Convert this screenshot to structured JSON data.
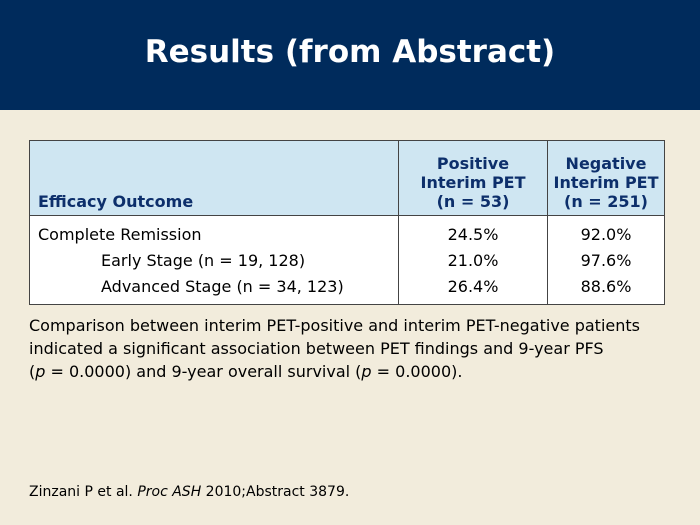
{
  "title": "Results (from Abstract)",
  "table": {
    "headers": {
      "outcome": "Efficacy Outcome",
      "positive": [
        "Positive",
        "Interim PET",
        "(n = 53)"
      ],
      "negative": [
        "Negative",
        "Interim PET",
        "(n = 251)"
      ]
    },
    "rows": [
      {
        "label": "Complete Remission",
        "positive": "24.5%",
        "negative": "92.0%"
      },
      {
        "label": "Early Stage (n = 19, 128)",
        "positive": "21.0%",
        "negative": "97.6%"
      },
      {
        "label": "Advanced Stage (n = 34, 123)",
        "positive": "26.4%",
        "negative": "88.6%"
      }
    ]
  },
  "body": {
    "line1": "Comparison between interim PET-positive and interim PET-negative patients",
    "line2": "indicated a significant association between PET findings and 9-year PFS",
    "line3_open": "(",
    "p1": "p",
    "line3_mid": " = 0.0000) and 9-year overall survival (",
    "p2": "p",
    "line3_end": " = 0.0000)."
  },
  "citation": {
    "authors": "Zinzani P et al. ",
    "journal": "Proc ASH",
    "rest": " 2010;Abstract 3879."
  }
}
